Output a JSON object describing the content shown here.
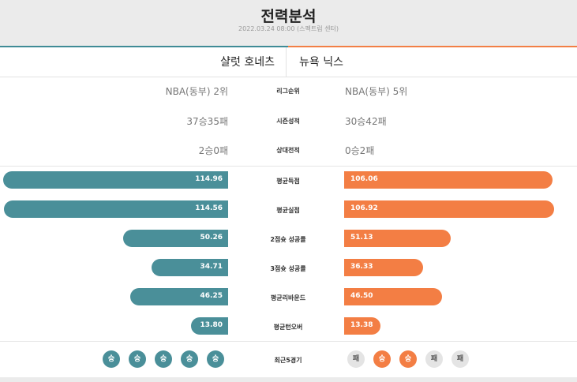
{
  "header": {
    "title": "전력분석",
    "subtitle": "2022.03.24 08:00 (스펙트럼 센터)"
  },
  "teams": {
    "home": "샬럿 호네츠",
    "away": "뉴욕 닉스"
  },
  "text_rows": [
    {
      "label": "리그순위",
      "home": "NBA(동부) 2위",
      "away": "NBA(동부) 5위"
    },
    {
      "label": "시즌성적",
      "home": "37승35패",
      "away": "30승42패"
    },
    {
      "label": "상대전적",
      "home": "2승0패",
      "away": "0승2패"
    }
  ],
  "stats": [
    {
      "label": "평균득점",
      "home": "114.96",
      "away": "106.06",
      "home_fill": 1.0,
      "away_fill": 0.92
    },
    {
      "label": "평균실점",
      "home": "114.56",
      "away": "106.92",
      "home_fill": 0.996,
      "away_fill": 0.93
    },
    {
      "label": "2점슛 성공률",
      "home": "50.26",
      "away": "51.13",
      "home_fill": 0.465,
      "away_fill": 0.47
    },
    {
      "label": "3점슛 성공률",
      "home": "34.71",
      "away": "36.33",
      "home_fill": 0.34,
      "away_fill": 0.35
    },
    {
      "label": "평균리바운드",
      "home": "46.25",
      "away": "46.50",
      "home_fill": 0.43,
      "away_fill": 0.43
    },
    {
      "label": "평균턴오버",
      "home": "13.80",
      "away": "13.38",
      "home_fill": 0.165,
      "away_fill": 0.165
    }
  ],
  "recent": {
    "label": "최근5경기",
    "home": [
      "승",
      "승",
      "승",
      "승",
      "승"
    ],
    "away": [
      "패",
      "승",
      "승",
      "패",
      "패"
    ]
  },
  "colors": {
    "home": "#4a8f99",
    "away": "#f37e44",
    "loss": "#e4e4e4"
  }
}
